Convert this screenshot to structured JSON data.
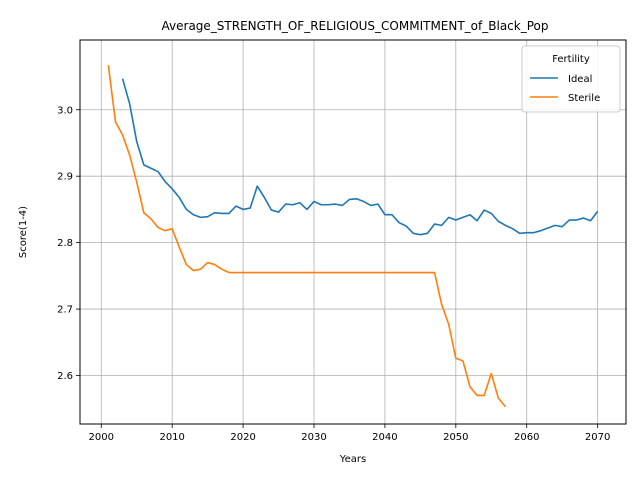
{
  "chart_data": {
    "type": "line",
    "title": "Average_STRENGTH_OF_RELIGIOUS_COMMITMENT_of_Black_Pop",
    "xlabel": "Years",
    "ylabel": "Score(1-4)",
    "xlim": [
      1997,
      2074
    ],
    "ylim": [
      2.527,
      3.105
    ],
    "xticks": [
      2000,
      2010,
      2020,
      2030,
      2040,
      2050,
      2060,
      2070
    ],
    "yticks": [
      2.6,
      2.7,
      2.8,
      2.9,
      3.0
    ],
    "grid": true,
    "legend": {
      "title": "Fertility",
      "placement": "top-right"
    },
    "series": [
      {
        "name": "Ideal",
        "color": "#1f77b4",
        "x": [
          2003,
          2004,
          2005,
          2006,
          2007,
          2008,
          2009,
          2010,
          2011,
          2012,
          2013,
          2014,
          2015,
          2016,
          2017,
          2018,
          2019,
          2020,
          2021,
          2022,
          2023,
          2024,
          2025,
          2026,
          2027,
          2028,
          2029,
          2030,
          2031,
          2032,
          2033,
          2034,
          2035,
          2036,
          2037,
          2038,
          2039,
          2040,
          2041,
          2042,
          2043,
          2044,
          2045,
          2046,
          2047,
          2048,
          2049,
          2050,
          2051,
          2052,
          2053,
          2054,
          2055,
          2056,
          2057,
          2058,
          2059,
          2060,
          2061,
          2062,
          2063,
          2064,
          2065,
          2066,
          2067,
          2068,
          2069,
          2070
        ],
        "y": [
          3.047,
          3.009,
          2.952,
          2.917,
          2.912,
          2.907,
          2.892,
          2.881,
          2.868,
          2.85,
          2.842,
          2.838,
          2.839,
          2.845,
          2.844,
          2.844,
          2.855,
          2.85,
          2.852,
          2.885,
          2.868,
          2.849,
          2.846,
          2.858,
          2.857,
          2.86,
          2.85,
          2.862,
          2.857,
          2.857,
          2.858,
          2.856,
          2.865,
          2.866,
          2.862,
          2.856,
          2.858,
          2.842,
          2.842,
          2.83,
          2.825,
          2.814,
          2.812,
          2.814,
          2.828,
          2.826,
          2.838,
          2.834,
          2.838,
          2.842,
          2.833,
          2.849,
          2.844,
          2.832,
          2.826,
          2.821,
          2.814,
          2.815,
          2.815,
          2.818,
          2.822,
          2.826,
          2.824,
          2.834,
          2.834,
          2.837,
          2.833,
          2.847
        ]
      },
      {
        "name": "Sterile",
        "color": "#ff7f0e",
        "x": [
          2001,
          2002,
          2003,
          2004,
          2005,
          2006,
          2007,
          2008,
          2009,
          2010,
          2011,
          2012,
          2013,
          2014,
          2015,
          2016,
          2017,
          2018,
          2019,
          2020,
          2021,
          2022,
          2023,
          2024,
          2025,
          2026,
          2027,
          2028,
          2029,
          2030,
          2031,
          2032,
          2033,
          2034,
          2035,
          2036,
          2037,
          2038,
          2039,
          2040,
          2041,
          2042,
          2043,
          2044,
          2045,
          2046,
          2047,
          2048,
          2049,
          2050,
          2051,
          2052,
          2053,
          2054,
          2055,
          2056,
          2057
        ],
        "y": [
          3.067,
          2.982,
          2.962,
          2.932,
          2.891,
          2.845,
          2.836,
          2.823,
          2.818,
          2.821,
          2.793,
          2.767,
          2.758,
          2.76,
          2.77,
          2.767,
          2.76,
          2.755,
          2.755,
          2.755,
          2.755,
          2.755,
          2.755,
          2.755,
          2.755,
          2.755,
          2.755,
          2.755,
          2.755,
          2.755,
          2.755,
          2.755,
          2.755,
          2.755,
          2.755,
          2.755,
          2.755,
          2.755,
          2.755,
          2.755,
          2.755,
          2.755,
          2.755,
          2.755,
          2.755,
          2.755,
          2.755,
          2.707,
          2.677,
          2.626,
          2.622,
          2.583,
          2.57,
          2.57,
          2.603,
          2.566,
          2.553
        ]
      }
    ]
  }
}
